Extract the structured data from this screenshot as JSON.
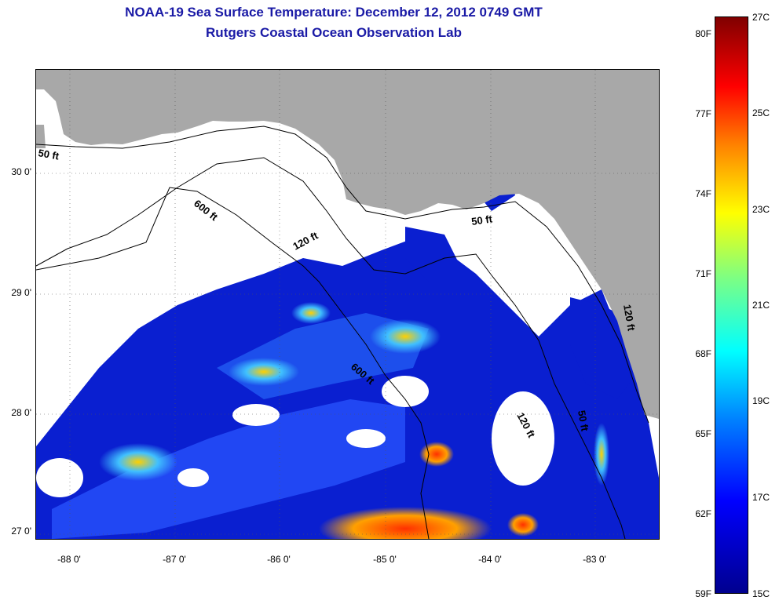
{
  "title": {
    "line1": "NOAA-19 Sea Surface Temperature:  December 12, 2012 0749 GMT",
    "line2": "Rutgers Coastal Ocean Observation Lab"
  },
  "map": {
    "lat_labels": [
      "30 0'",
      "29 0'",
      "28 0'",
      "27 0'"
    ],
    "lon_labels": [
      "-88 0'",
      "-87 0'",
      "-86 0'",
      "-85 0'",
      "-84 0'",
      "-83 0'"
    ],
    "contour_labels": [
      "50 ft",
      "600 ft",
      "120 ft",
      "50 ft",
      "600 ft",
      "120 ft",
      "50 ft",
      "120 ft"
    ],
    "colors": {
      "land": "#a8a8a8",
      "cloud": "#ffffff",
      "contour": "#000000"
    }
  },
  "colorbar": {
    "fahrenheit": [
      "80F",
      "77F",
      "74F",
      "71F",
      "68F",
      "65F",
      "62F",
      "59F"
    ],
    "celsius": [
      "27C",
      "25C",
      "23C",
      "21C",
      "19C",
      "17C",
      "15C"
    ]
  }
}
